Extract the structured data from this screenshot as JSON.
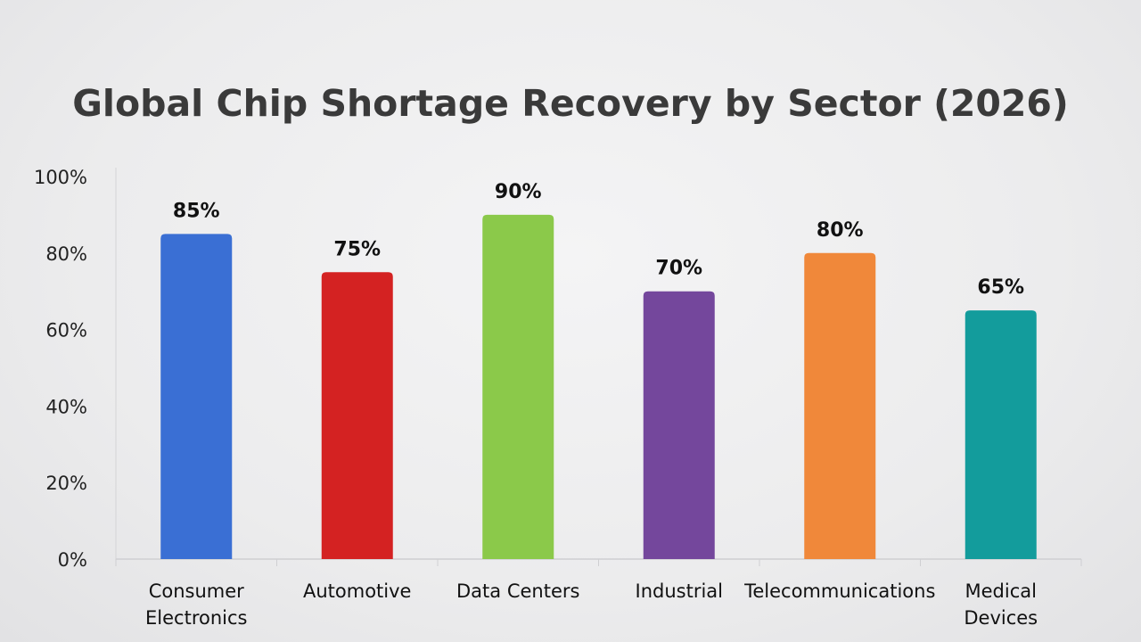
{
  "chart_data": {
    "type": "bar",
    "title": "Global Chip Shortage Recovery by Sector (2026)",
    "xlabel": "",
    "ylabel": "",
    "ylim": [
      0,
      100
    ],
    "yticks": [
      "0%",
      "20%",
      "40%",
      "60%",
      "80%",
      "100%"
    ],
    "grid": false,
    "categories": [
      [
        "Consumer",
        "Electronics"
      ],
      [
        "Automotive"
      ],
      [
        "Data Centers"
      ],
      [
        "Industrial"
      ],
      [
        "Telecommunications"
      ],
      [
        "Medical",
        "Devices"
      ]
    ],
    "values": [
      85,
      75,
      90,
      70,
      80,
      65
    ],
    "data_labels": [
      "85%",
      "75%",
      "90%",
      "70%",
      "80%",
      "65%"
    ],
    "colors": [
      "#3a6fd4",
      "#d42222",
      "#8bc94a",
      "#74479c",
      "#f0883a",
      "#139c9c"
    ]
  }
}
